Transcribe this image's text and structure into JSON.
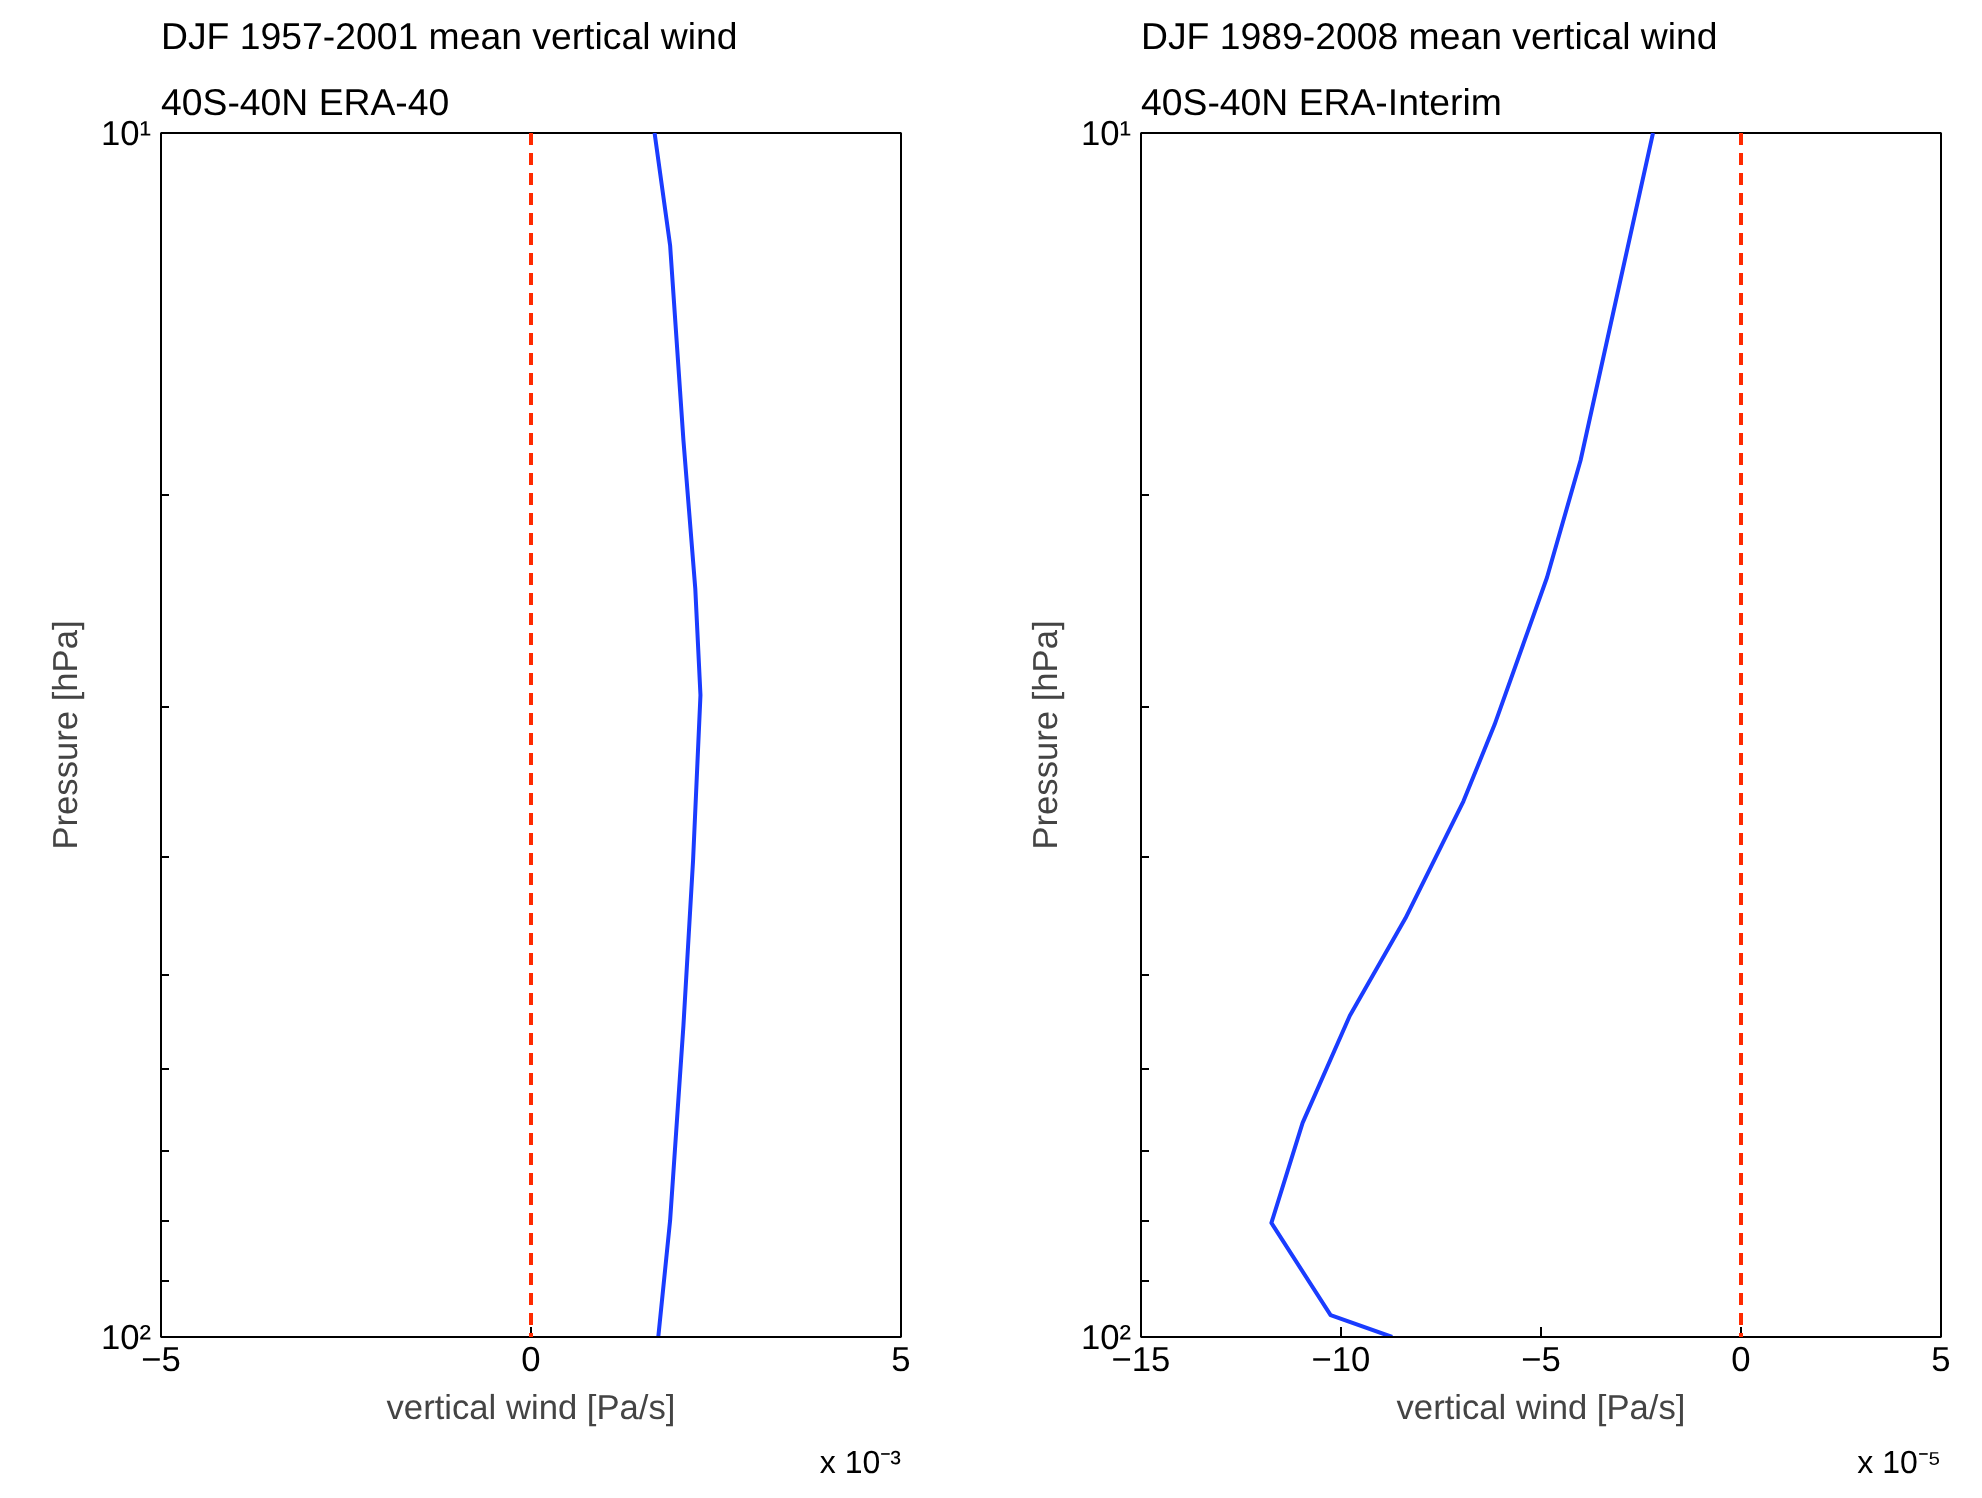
{
  "chart_data": [
    {
      "type": "line",
      "title": "DJF 1957-2001 mean vertical wind",
      "subtitle": "40S-40N ERA-40",
      "xlabel": "vertical wind [Pa/s]",
      "ylabel": "Pressure [hPa]",
      "log": "y",
      "xlim": [
        -5,
        5
      ],
      "xticks": [
        -5,
        0,
        5
      ],
      "ylim": [
        100,
        10
      ],
      "yticks": [
        {
          "value": 10,
          "label": "10¹"
        },
        {
          "value": 20,
          "label": null
        },
        {
          "value": 30,
          "label": null
        },
        {
          "value": 40,
          "label": null
        },
        {
          "value": 50,
          "label": null
        },
        {
          "value": 60,
          "label": null
        },
        {
          "value": 70,
          "label": null
        },
        {
          "value": 80,
          "label": null
        },
        {
          "value": 90,
          "label": null
        },
        {
          "value": 100,
          "label": "10²"
        }
      ],
      "grid": false,
      "annotations": [
        "x 10⁻³"
      ],
      "ref_lines": [
        {
          "axis": "x",
          "value": 0,
          "label": null,
          "color": "#ff2a00",
          "line_style": "dashed"
        }
      ],
      "series": [
        {
          "color": "#1a3cff",
          "x": [
            1.67,
            1.88,
            2.06,
            2.22,
            2.29,
            2.19,
            2.06,
            1.88,
            1.72
          ],
          "values": [
            10,
            12.4,
            18,
            23.9,
            29.3,
            40.2,
            55.1,
            80,
            100
          ]
        }
      ]
    },
    {
      "type": "line",
      "title": "DJF 1989-2008 mean vertical wind",
      "subtitle": "40S-40N ERA-Interim",
      "xlabel": "vertical wind [Pa/s]",
      "ylabel": "Pressure [hPa]",
      "log": "y",
      "xlim": [
        -15,
        5
      ],
      "xticks": [
        -15,
        -10,
        -5,
        0,
        5
      ],
      "ylim": [
        100,
        10
      ],
      "yticks": [
        {
          "value": 10,
          "label": "10¹"
        },
        {
          "value": 20,
          "label": null
        },
        {
          "value": 30,
          "label": null
        },
        {
          "value": 40,
          "label": null
        },
        {
          "value": 50,
          "label": null
        },
        {
          "value": 60,
          "label": null
        },
        {
          "value": 70,
          "label": null
        },
        {
          "value": 80,
          "label": null
        },
        {
          "value": 90,
          "label": null
        },
        {
          "value": 100,
          "label": "10²"
        }
      ],
      "grid": false,
      "annotations": [
        "x 10⁻⁵"
      ],
      "ref_lines": [
        {
          "axis": "x",
          "value": 0,
          "label": null,
          "color": "#ff2a00",
          "line_style": "dashed"
        }
      ],
      "series": [
        {
          "color": "#1a3cff",
          "x": [
            -2.2,
            -3.09,
            -4.01,
            -4.85,
            -6.16,
            -6.94,
            -8.39,
            -9.78,
            -10.96,
            -11.74,
            -10.26,
            -8.72
          ],
          "values": [
            10,
            13.6,
            18.7,
            23.4,
            31,
            35.9,
            44.9,
            54.1,
            66.4,
            80.4,
            95.9,
            100
          ]
        }
      ]
    }
  ]
}
